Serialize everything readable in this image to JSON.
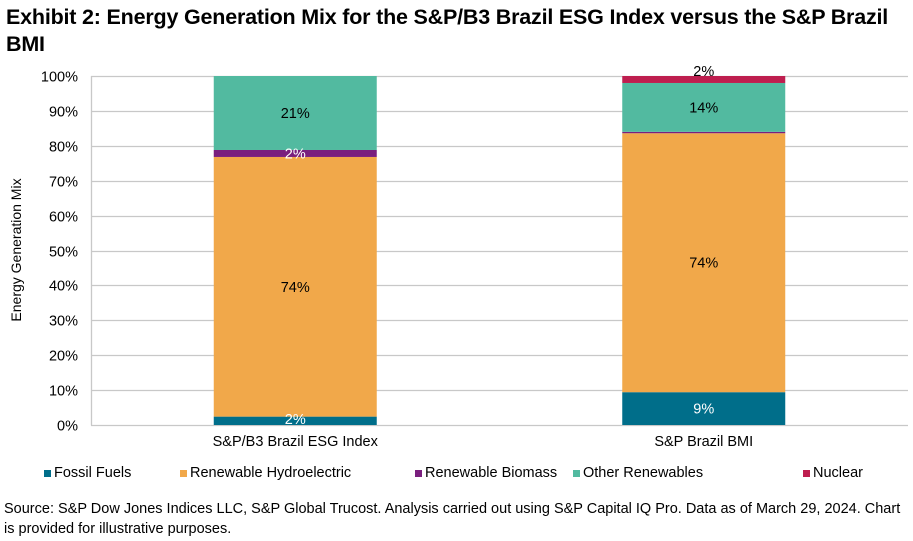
{
  "title": "Exhibit 2: Energy Generation Mix for the S&P/B3 Brazil ESG Index versus the S&P Brazil BMI",
  "source_note": "Source: S&P Dow Jones Indices LLC, S&P Global Trucost. Analysis carried out using S&P Capital IQ Pro. Data as of March 29, 2024. Chart is provided for illustrative purposes.",
  "chart_data": {
    "type": "bar",
    "stacked": true,
    "title": "Exhibit 2: Energy Generation Mix for the S&P/B3 Brazil ESG Index versus the S&P Brazil BMI",
    "xlabel": "",
    "ylabel": "Energy Generation Mix",
    "ylim": [
      0,
      100
    ],
    "yticks": [
      0,
      10,
      20,
      30,
      40,
      50,
      60,
      70,
      80,
      90,
      100
    ],
    "ytick_labels": [
      "0%",
      "10%",
      "20%",
      "30%",
      "40%",
      "50%",
      "60%",
      "70%",
      "80%",
      "90%",
      "100%"
    ],
    "grid": true,
    "legend_position": "bottom",
    "categories": [
      "S&P/B3 Brazil ESG Index",
      "S&P Brazil BMI"
    ],
    "series": [
      {
        "name": "Fossil Fuels",
        "color": "#006E8A",
        "values": [
          2.4,
          9.4
        ],
        "labels": [
          "2%",
          "9%"
        ],
        "label_color": "#ffffff"
      },
      {
        "name": "Renewable Hydroelectric",
        "color": "#F1A84A",
        "values": [
          74.4,
          74.2
        ],
        "labels": [
          "74%",
          "74%"
        ],
        "label_color": "#000000"
      },
      {
        "name": "Renewable Biomass",
        "color": "#7A1F7E",
        "values": [
          2.0,
          0.4
        ],
        "labels": [
          "2%",
          ""
        ],
        "label_color": "#ffffff"
      },
      {
        "name": "Other Renewables",
        "color": "#52BAA0",
        "values": [
          21.2,
          14.0
        ],
        "labels": [
          "21%",
          "14%"
        ],
        "label_color": "#000000"
      },
      {
        "name": "Nuclear",
        "color": "#BE1E4F",
        "values": [
          0.0,
          2.0
        ],
        "labels": [
          "",
          "2%"
        ],
        "label_color": "#000000"
      }
    ]
  }
}
